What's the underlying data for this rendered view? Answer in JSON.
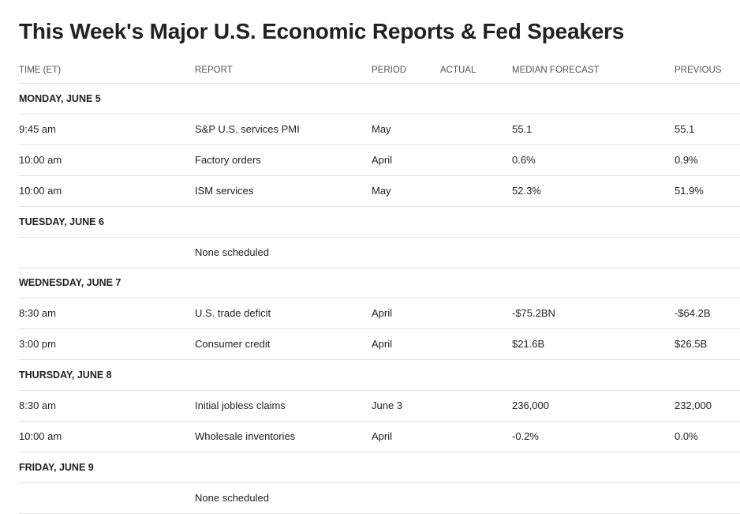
{
  "title": "This Week's Major U.S. Economic Reports & Fed Speakers",
  "columns": [
    "TIME (ET)",
    "REPORT",
    "PERIOD",
    "ACTUAL",
    "MEDIAN FORECAST",
    "PREVIOUS"
  ],
  "days": [
    {
      "day": "MONDAY, JUNE 5",
      "rows": [
        {
          "time": "9:45 am",
          "report": "S&P U.S. services PMI",
          "period": "May",
          "forecast": "55.1",
          "previous": "55.1"
        },
        {
          "time": "10:00 am",
          "report": "Factory orders",
          "period": "April",
          "forecast": "0.6%",
          "previous": "0.9%"
        },
        {
          "time": "10:00 am",
          "report": "ISM services",
          "period": "May",
          "forecast": "52.3%",
          "previous": "51.9%"
        }
      ]
    },
    {
      "day": "TUESDAY, JUNE 6",
      "rows": [
        {
          "report": "None scheduled"
        }
      ]
    },
    {
      "day": "WEDNESDAY, JUNE 7",
      "rows": [
        {
          "time": "8:30 am",
          "report": "U.S. trade deficit",
          "period": "April",
          "forecast": "-$75.2BN",
          "previous": "-$64.2B"
        },
        {
          "time": "3:00 pm",
          "report": "Consumer credit",
          "period": "April",
          "forecast": "$21.6B",
          "previous": "$26.5B"
        }
      ]
    },
    {
      "day": "THURSDAY, JUNE 8",
      "rows": [
        {
          "time": "8:30 am",
          "report": "Initial jobless claims",
          "period": "June 3",
          "forecast": "236,000",
          "previous": "232,000"
        },
        {
          "time": "10:00 am",
          "report": "Wholesale inventories",
          "period": "April",
          "forecast": "-0.2%",
          "previous": "0.0%"
        }
      ]
    },
    {
      "day": "FRIDAY, JUNE 9",
      "rows": [
        {
          "report": "None scheduled"
        }
      ]
    }
  ]
}
